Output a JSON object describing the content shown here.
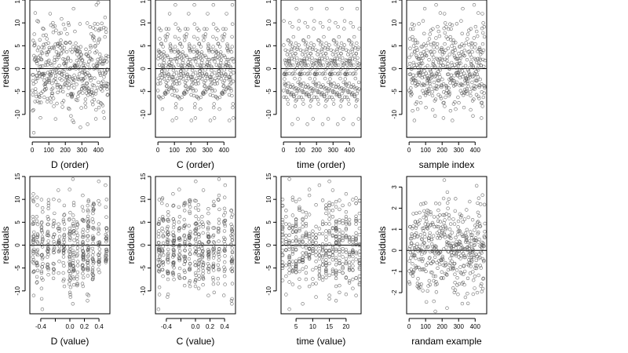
{
  "chart_data": [
    {
      "type": "scatter",
      "xlabel": "D (order)",
      "ylabel": "residuals",
      "xlim": [
        -15,
        470
      ],
      "ylim": [
        -15,
        15
      ],
      "xticks": [
        0,
        100,
        200,
        300,
        400
      ],
      "yticks": [
        -10,
        -5,
        0,
        5,
        10,
        15
      ],
      "refline": 0,
      "points": []
    },
    {
      "type": "scatter",
      "xlabel": "C (order)",
      "ylabel": "residuals",
      "xlim": [
        -15,
        470
      ],
      "ylim": [
        -15,
        15
      ],
      "xticks": [
        0,
        100,
        200,
        300,
        400
      ],
      "yticks": [
        -10,
        -5,
        0,
        5,
        10,
        15
      ],
      "refline": 0,
      "points": []
    },
    {
      "type": "scatter",
      "xlabel": "time (order)",
      "ylabel": "residuals",
      "xlim": [
        -15,
        470
      ],
      "ylim": [
        -15,
        15
      ],
      "xticks": [
        0,
        100,
        200,
        300,
        400
      ],
      "yticks": [
        -10,
        -5,
        0,
        5,
        10,
        15
      ],
      "refline": 0,
      "points": []
    },
    {
      "type": "scatter",
      "xlabel": "sample index",
      "ylabel": "residuals",
      "xlim": [
        -15,
        470
      ],
      "ylim": [
        -15,
        15
      ],
      "xticks": [
        0,
        100,
        200,
        300,
        400
      ],
      "yticks": [
        -10,
        -5,
        0,
        5,
        10,
        15
      ],
      "refline": 0,
      "points": []
    },
    {
      "type": "scatter",
      "xlabel": "D (value)",
      "ylabel": "residuals",
      "xlim": [
        -0.55,
        0.55
      ],
      "ylim": [
        -15,
        15
      ],
      "xticks": [
        -0.4,
        -0.2,
        0.0,
        0.2,
        0.4
      ],
      "xtick_labels": [
        "-0.4",
        "",
        "0.0",
        "0.2",
        "0.4"
      ],
      "yticks": [
        -10,
        -5,
        0,
        5,
        10,
        15
      ],
      "refline": 0,
      "points": []
    },
    {
      "type": "scatter",
      "xlabel": "C (value)",
      "ylabel": "residuals",
      "xlim": [
        -0.55,
        0.55
      ],
      "ylim": [
        -15,
        15
      ],
      "xticks": [
        -0.4,
        -0.2,
        0.0,
        0.2,
        0.4
      ],
      "xtick_labels": [
        "-0.4",
        "",
        "0.0",
        "0.2",
        "0.4"
      ],
      "yticks": [
        -10,
        -5,
        0,
        5,
        10,
        15
      ],
      "refline": 0,
      "points": []
    },
    {
      "type": "scatter",
      "xlabel": "time (value)",
      "ylabel": "residuals",
      "xlim": [
        0.5,
        24.5
      ],
      "ylim": [
        -15,
        15
      ],
      "xticks": [
        5,
        10,
        15,
        20
      ],
      "yticks": [
        -10,
        -5,
        0,
        5,
        10,
        15
      ],
      "refline": 0,
      "points": []
    },
    {
      "type": "scatter",
      "xlabel": "randam example",
      "ylabel": "residuals",
      "xlim": [
        -15,
        470
      ],
      "ylim": [
        -3,
        3.5
      ],
      "xticks": [
        0,
        100,
        200,
        300,
        400
      ],
      "yticks": [
        -2,
        -1,
        0,
        1,
        2,
        3
      ],
      "refline": 0,
      "points": []
    }
  ]
}
